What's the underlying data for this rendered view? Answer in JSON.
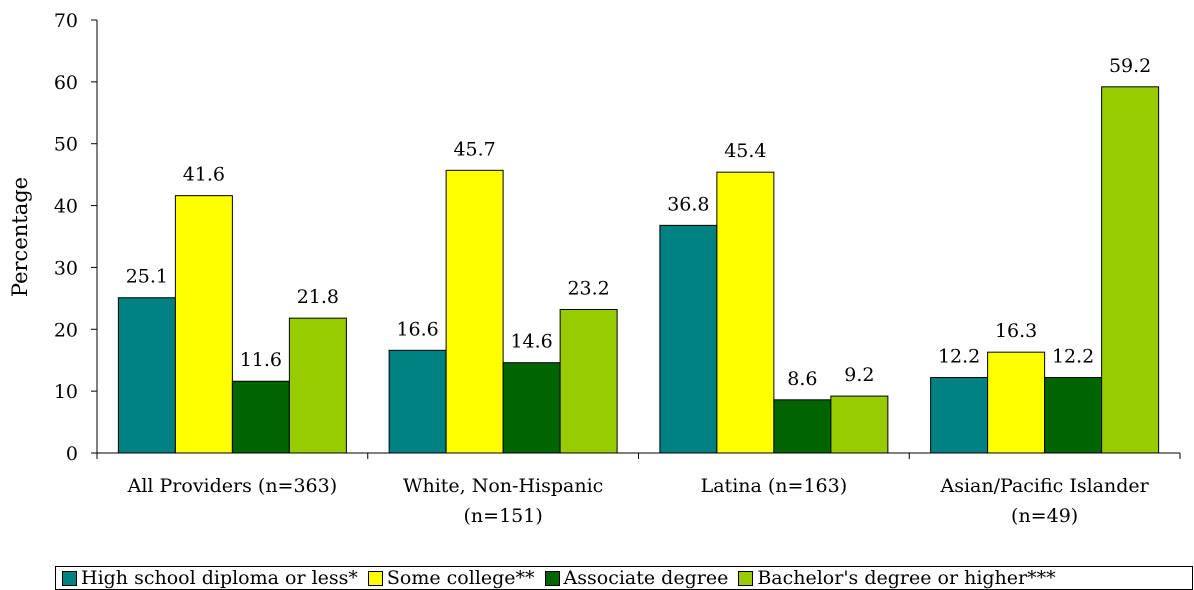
{
  "chart_data": {
    "type": "bar",
    "title": "",
    "xlabel": "",
    "ylabel": "Percentage",
    "ylim": [
      0,
      70
    ],
    "yticks": [
      "0",
      "10",
      "20",
      "30",
      "40",
      "50",
      "60",
      "70"
    ],
    "categories": [
      [
        "All Providers (n=363)"
      ],
      [
        "White, Non-Hispanic",
        "(n=151)"
      ],
      [
        "Latina (n=163)"
      ],
      [
        "Asian/Pacific Islander",
        "(n=49)"
      ]
    ],
    "series": [
      {
        "name": "High school diploma or less*",
        "color": "#008080",
        "values": [
          25.1,
          16.6,
          36.8,
          12.2
        ],
        "labels": [
          "25.1",
          "16.6",
          "36.8",
          "12.2"
        ]
      },
      {
        "name": "Some college**",
        "color": "#ffff00",
        "values": [
          41.6,
          45.7,
          45.4,
          16.3
        ],
        "labels": [
          "41.6",
          "45.7",
          "45.4",
          "16.3"
        ]
      },
      {
        "name": "Associate degree",
        "color": "#006400",
        "values": [
          11.6,
          14.6,
          8.6,
          12.2
        ],
        "labels": [
          "11.6",
          "14.6",
          "8.6",
          "12.2"
        ]
      },
      {
        "name": "Bachelor's degree or higher***",
        "color": "#99cc00",
        "values": [
          21.8,
          23.2,
          9.2,
          59.2
        ],
        "labels": [
          "21.8",
          "23.2",
          "9.2",
          "59.2"
        ]
      }
    ],
    "grid": false,
    "legend_position": "bottom"
  }
}
